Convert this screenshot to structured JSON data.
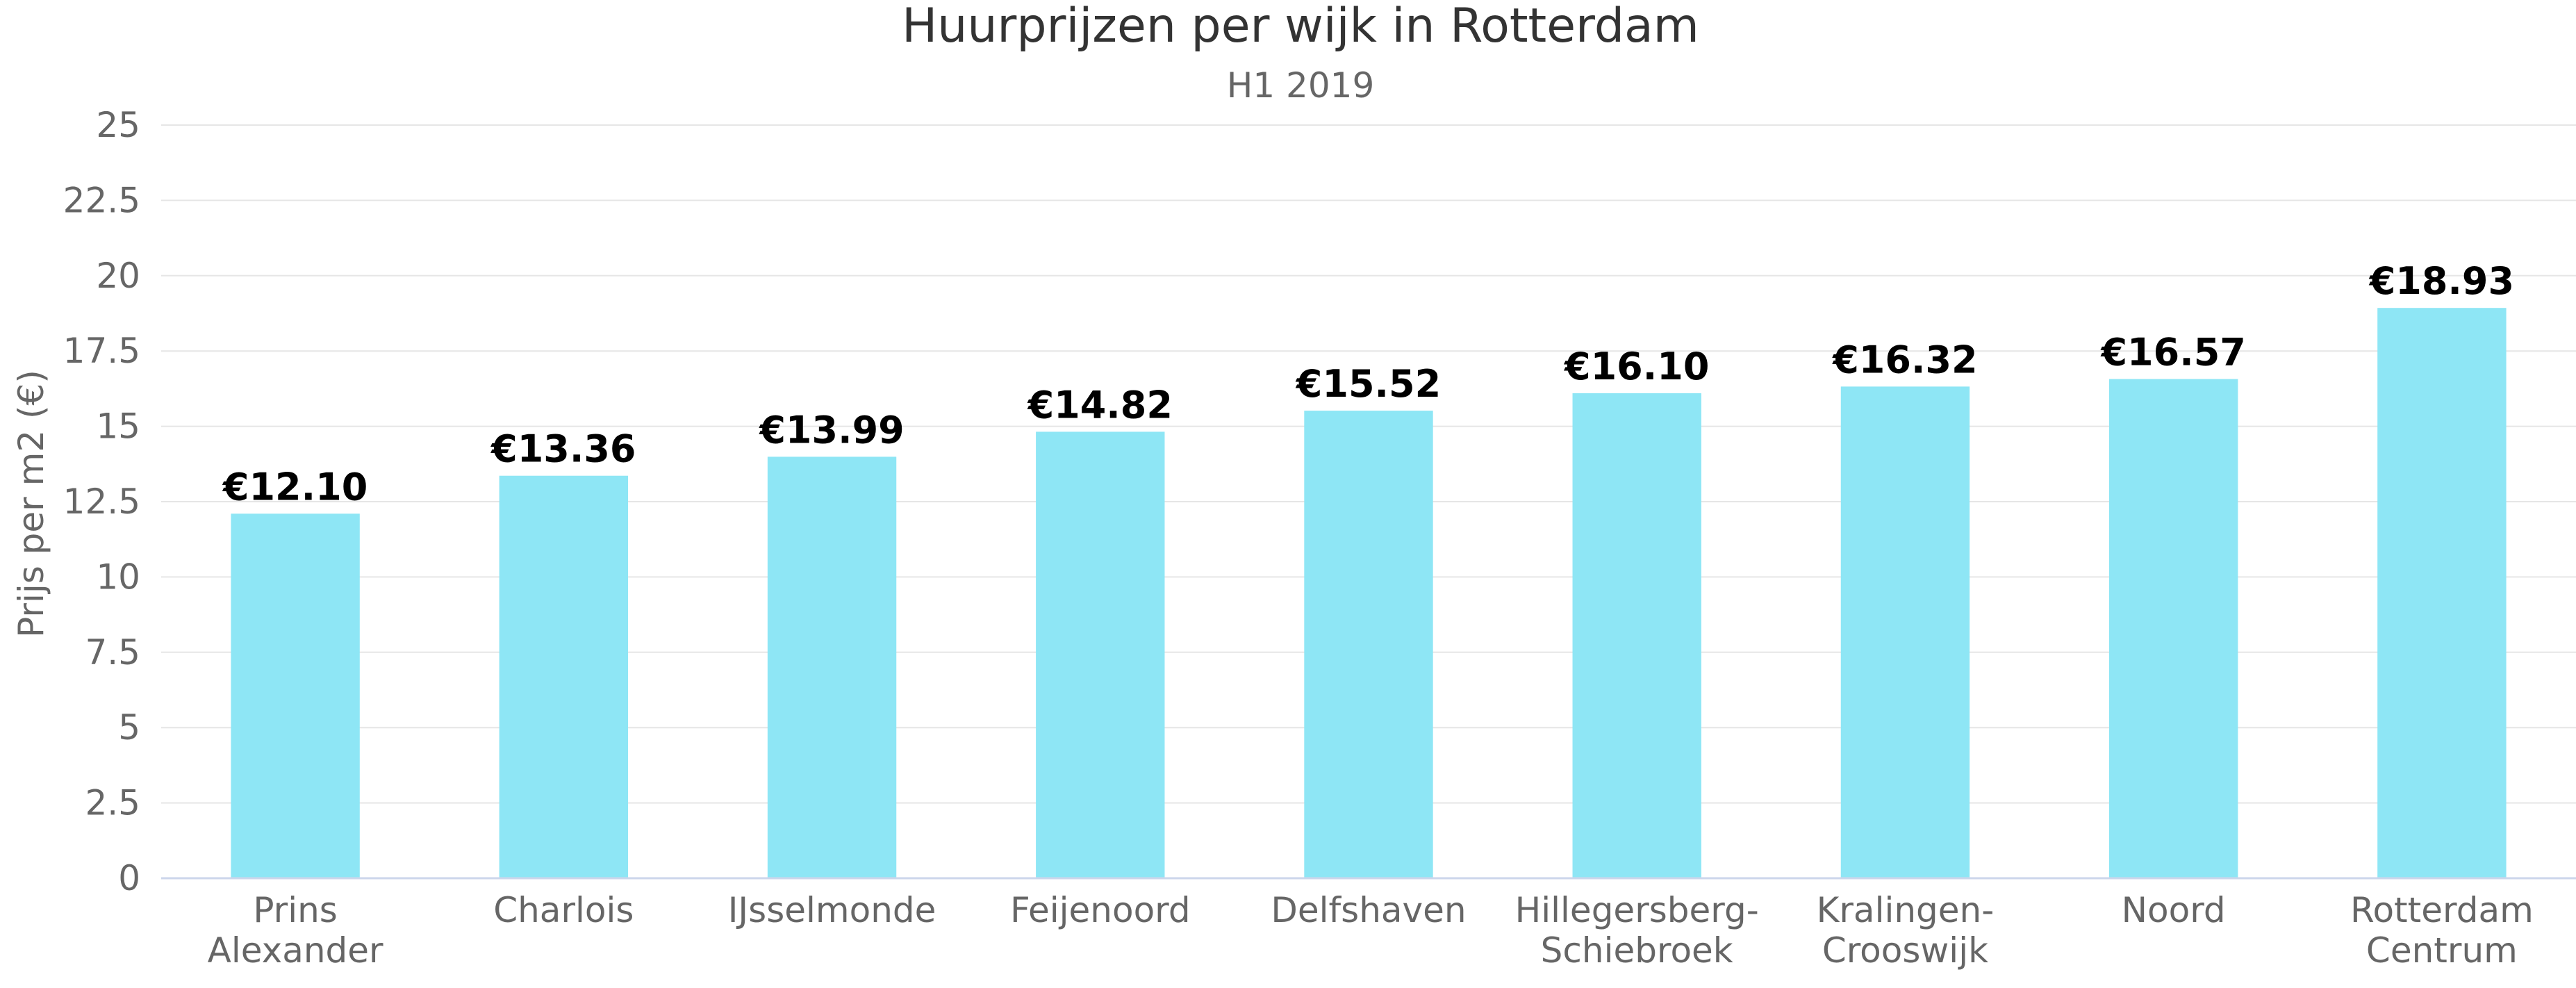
{
  "chart_data": {
    "type": "bar",
    "title": "Huurprijzen per wijk in Rotterdam",
    "subtitle": "H1 2019",
    "ylabel": "Prijs per m2 (€)",
    "xlabel": "",
    "ylim": [
      0,
      25
    ],
    "yticks": [
      0,
      2.5,
      5,
      7.5,
      10,
      12.5,
      15,
      17.5,
      20,
      22.5,
      25
    ],
    "ytick_labels": [
      "0",
      "2.5",
      "5",
      "7.5",
      "10",
      "12.5",
      "15",
      "17.5",
      "20",
      "22.5",
      "25"
    ],
    "grid": true,
    "bar_color": "#8ee6f5",
    "categories": [
      [
        "Prins",
        "Alexander"
      ],
      [
        "Charlois"
      ],
      [
        "IJsselmonde"
      ],
      [
        "Feijenoord"
      ],
      [
        "Delfshaven"
      ],
      [
        "Hillegersberg-",
        "Schiebroek"
      ],
      [
        "Kralingen-",
        "Crooswijk"
      ],
      [
        "Noord"
      ],
      [
        "Rotterdam",
        "Centrum"
      ]
    ],
    "values": [
      12.1,
      13.36,
      13.99,
      14.82,
      15.52,
      16.1,
      16.32,
      16.57,
      18.93
    ],
    "data_labels": [
      "€12.10",
      "€13.36",
      "€13.99",
      "€14.82",
      "€15.52",
      "€16.10",
      "€16.32",
      "€16.57",
      "€18.93"
    ]
  }
}
